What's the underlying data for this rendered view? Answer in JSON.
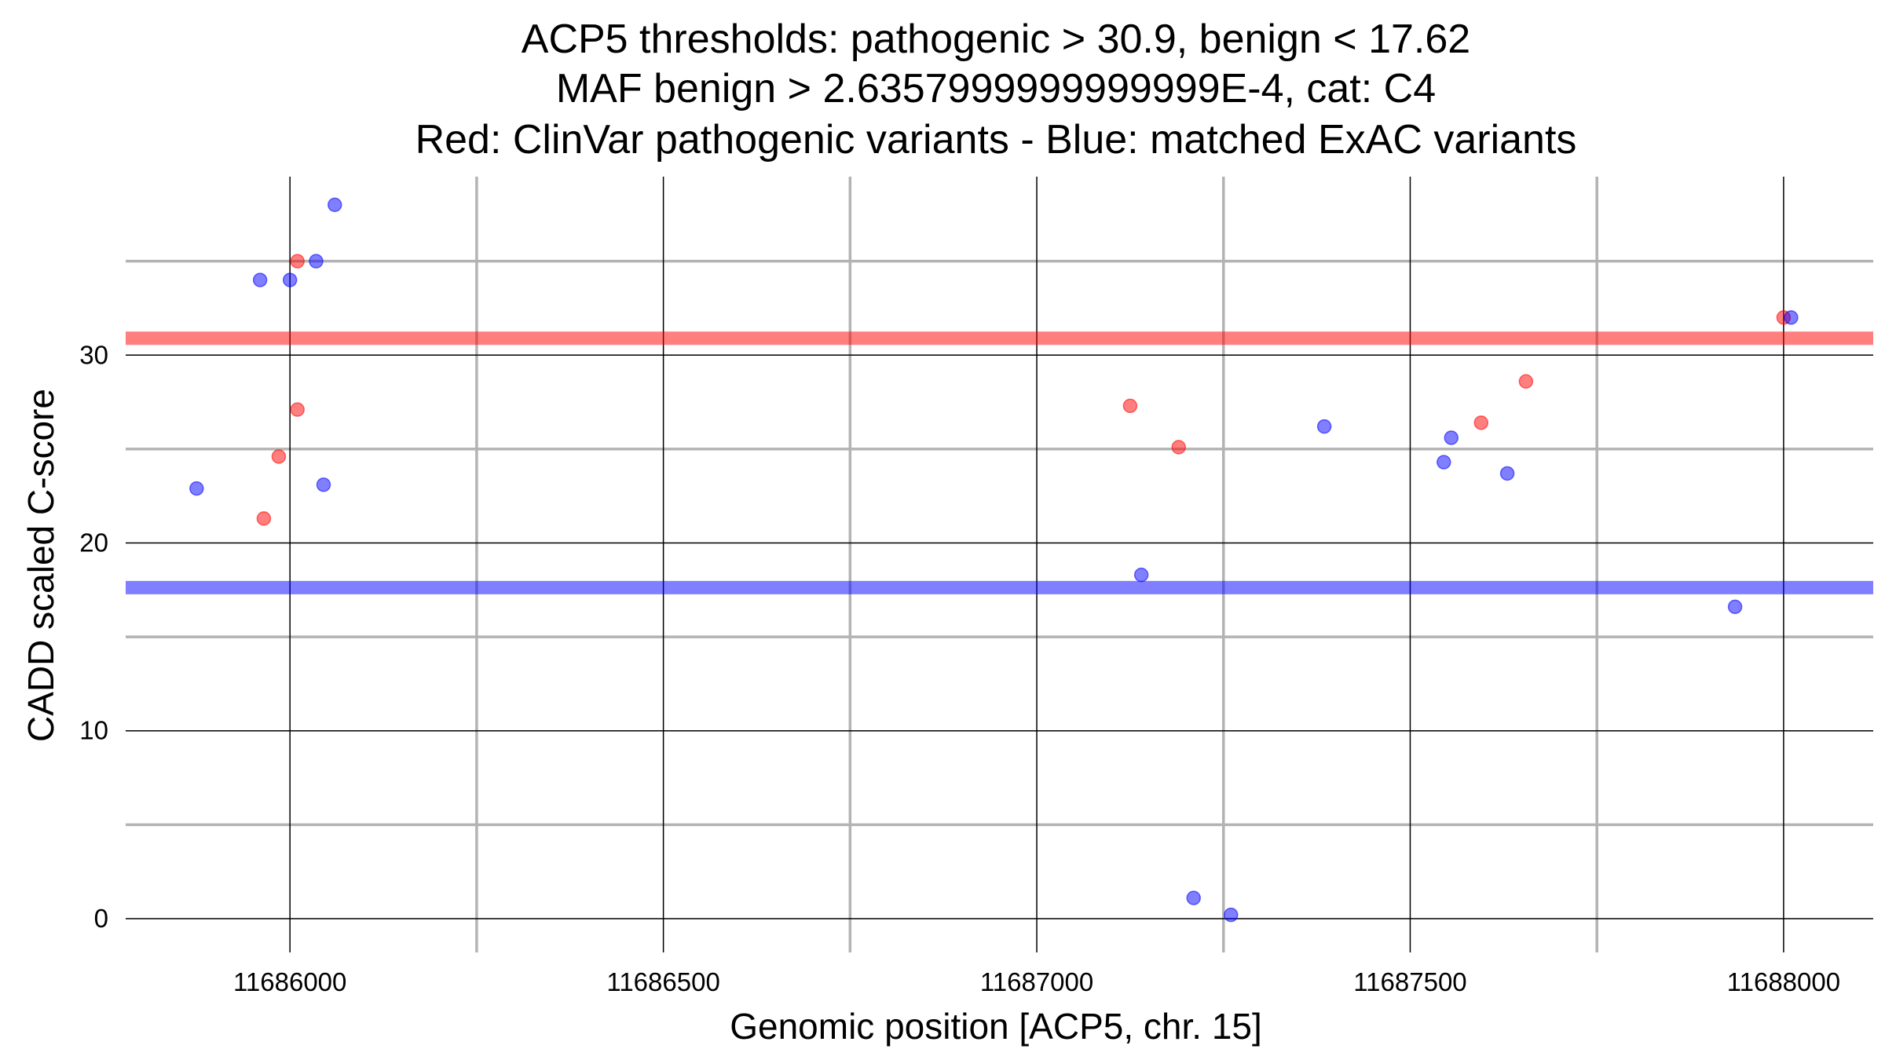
{
  "chart_data": {
    "type": "scatter",
    "title_lines": [
      "ACP5 thresholds: pathogenic > 30.9, benign < 17.62",
      "MAF benign > 2.6357999999999999E-4, cat: C4",
      "Red: ClinVar pathogenic variants - Blue: matched ExAC variants"
    ],
    "xlabel": "Genomic position [ACP5, chr. 15]",
    "ylabel": "CADD scaled C-score",
    "xlim": [
      11685780,
      11688120
    ],
    "ylim": [
      -1.8,
      39.5
    ],
    "x_ticks": [
      {
        "value": 11686000,
        "label": "11686000"
      },
      {
        "value": 11686500,
        "label": "11686500"
      },
      {
        "value": 11687000,
        "label": "11687000"
      },
      {
        "value": 11687500,
        "label": "11687500"
      },
      {
        "value": 11688000,
        "label": "11688000"
      }
    ],
    "y_ticks": [
      {
        "value": 0,
        "label": "0"
      },
      {
        "value": 10,
        "label": "10"
      },
      {
        "value": 20,
        "label": "20"
      },
      {
        "value": 30,
        "label": "30"
      }
    ],
    "minor_x_grid": [
      11686250,
      11686750,
      11687250,
      11687750
    ],
    "minor_y_grid": [
      5,
      15,
      25,
      35
    ],
    "thresholds": [
      {
        "name": "pathogenic",
        "value": 30.9,
        "color": "#ff0000"
      },
      {
        "name": "benign",
        "value": 17.62,
        "color": "#0000ff"
      }
    ],
    "colors": {
      "pathogenic": "#ff0000",
      "benign": "#0000ff",
      "major_grid": "#000000",
      "minor_grid": "#b3b3b3"
    },
    "series": [
      {
        "color_key": "pathogenic",
        "points": [
          {
            "x": 11685965,
            "y": 21.3
          },
          {
            "x": 11685985,
            "y": 24.6
          },
          {
            "x": 11686010,
            "y": 35.0
          },
          {
            "x": 11686010,
            "y": 27.1
          },
          {
            "x": 11687125,
            "y": 27.3
          },
          {
            "x": 11687190,
            "y": 25.1
          },
          {
            "x": 11687595,
            "y": 26.4
          },
          {
            "x": 11687655,
            "y": 28.6
          },
          {
            "x": 11688000,
            "y": 32.0
          }
        ]
      },
      {
        "color_key": "benign",
        "points": [
          {
            "x": 11685875,
            "y": 22.9
          },
          {
            "x": 11685960,
            "y": 34.0
          },
          {
            "x": 11686000,
            "y": 34.0
          },
          {
            "x": 11686035,
            "y": 35.0
          },
          {
            "x": 11686045,
            "y": 23.1
          },
          {
            "x": 11686060,
            "y": 38.0
          },
          {
            "x": 11687140,
            "y": 18.3
          },
          {
            "x": 11687210,
            "y": 1.1
          },
          {
            "x": 11687260,
            "y": 0.2
          },
          {
            "x": 11687385,
            "y": 26.2
          },
          {
            "x": 11687545,
            "y": 24.3
          },
          {
            "x": 11687555,
            "y": 25.6
          },
          {
            "x": 11687630,
            "y": 23.7
          },
          {
            "x": 11687935,
            "y": 16.6
          },
          {
            "x": 11688010,
            "y": 32.0
          }
        ]
      }
    ]
  }
}
